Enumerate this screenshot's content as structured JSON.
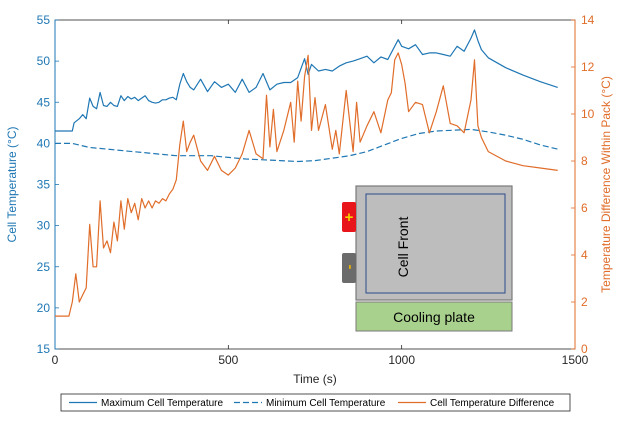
{
  "colors": {
    "left_axis": "#1f77b4",
    "right_axis": "#e06d2a",
    "max_series": "#1f77b4",
    "min_series": "#1f77b4",
    "diff_series": "#e06d2a",
    "cell_fill": "#bdbdbd",
    "cell_border": "#7a7a7a",
    "cell_inner_border": "#2b4a8a",
    "plus_terminal": "#e8161b",
    "plus_mark": "#f2d200",
    "minus_terminal": "#6b6b6b",
    "minus_mark": "#e8b400",
    "cooling_plate": "#a9d18e"
  },
  "inset": {
    "cell_label": "Cell Front",
    "plate_label": "Cooling plate",
    "plus_symbol": "+",
    "minus_symbol": "-"
  },
  "chart_data": {
    "type": "line",
    "title": "",
    "xlabel": "Time (s)",
    "ylabel_left": "Cell Temperature (°C)",
    "ylabel_right": "Temperature Difference Within Pack (°C)",
    "xlim": [
      0,
      1500
    ],
    "ylim_left": [
      15,
      55
    ],
    "ylim_right": [
      0,
      14
    ],
    "x_ticks": [
      0,
      500,
      1000,
      1500
    ],
    "y_ticks_left": [
      15,
      20,
      25,
      30,
      35,
      40,
      45,
      50,
      55
    ],
    "y_ticks_right": [
      0,
      2,
      4,
      6,
      8,
      10,
      12,
      14
    ],
    "grid": false,
    "legend_position": "bottom",
    "series": [
      {
        "name": "Maximum Cell Temperature",
        "axis": "left",
        "style": "solid",
        "x": [
          0,
          50,
          55,
          70,
          80,
          90,
          100,
          110,
          120,
          130,
          140,
          150,
          160,
          170,
          180,
          190,
          200,
          210,
          220,
          230,
          240,
          250,
          260,
          270,
          280,
          290,
          300,
          310,
          320,
          330,
          340,
          350,
          360,
          370,
          380,
          390,
          400,
          420,
          440,
          460,
          480,
          500,
          520,
          540,
          560,
          580,
          600,
          620,
          640,
          660,
          680,
          700,
          720,
          730,
          740,
          760,
          780,
          800,
          820,
          840,
          860,
          880,
          900,
          920,
          940,
          960,
          980,
          990,
          1000,
          1020,
          1040,
          1060,
          1080,
          1100,
          1120,
          1140,
          1160,
          1180,
          1200,
          1210,
          1220,
          1230,
          1250,
          1300,
          1350,
          1400,
          1450
        ],
        "y": [
          41.5,
          41.5,
          42.5,
          43,
          43.5,
          43,
          45.5,
          44.5,
          44.2,
          46.2,
          44.6,
          44.5,
          45,
          44.6,
          44.5,
          45.8,
          45.2,
          45.7,
          45.4,
          45.6,
          45.2,
          45.5,
          45.8,
          45.2,
          45,
          44.9,
          45,
          45.3,
          45.3,
          45.5,
          45.6,
          45.3,
          47.2,
          48.5,
          47.5,
          46.8,
          46.5,
          47.8,
          46.3,
          47.5,
          46.8,
          47.2,
          46.2,
          47.8,
          46.2,
          46.8,
          48.5,
          46.5,
          47.2,
          47.4,
          47.4,
          48,
          50.3,
          48.4,
          49.6,
          48.8,
          49,
          48.8,
          49.4,
          49.8,
          50,
          50.3,
          50.6,
          49.8,
          50.5,
          50.2,
          51.8,
          52.6,
          51.8,
          51.5,
          52,
          50.8,
          51,
          51,
          50.8,
          50.6,
          51.8,
          51.2,
          52.8,
          53.8,
          52.5,
          51.4,
          50.4,
          49.2,
          48.3,
          47.5,
          46.8
        ]
      },
      {
        "name": "Minimum Cell Temperature",
        "axis": "left",
        "style": "dashed",
        "x": [
          0,
          50,
          100,
          150,
          200,
          250,
          300,
          350,
          400,
          450,
          500,
          550,
          600,
          650,
          700,
          750,
          800,
          850,
          900,
          950,
          1000,
          1050,
          1100,
          1150,
          1200,
          1250,
          1300,
          1350,
          1400,
          1450
        ],
        "y": [
          40,
          40,
          39.5,
          39.3,
          39.1,
          38.9,
          38.7,
          38.5,
          38.5,
          38.5,
          38.3,
          38.1,
          38,
          37.9,
          37.8,
          37.9,
          38.2,
          38.5,
          39,
          39.8,
          40.6,
          41.2,
          41.5,
          41.6,
          41.7,
          41.4,
          41,
          40.5,
          39.8,
          39.3
        ]
      },
      {
        "name": "Cell Temperature Difference",
        "axis": "right",
        "style": "solid",
        "x": [
          0,
          40,
          50,
          60,
          70,
          80,
          90,
          100,
          110,
          120,
          130,
          140,
          150,
          160,
          170,
          180,
          190,
          200,
          210,
          220,
          230,
          240,
          250,
          260,
          270,
          280,
          290,
          300,
          310,
          320,
          330,
          340,
          350,
          360,
          370,
          380,
          390,
          400,
          420,
          440,
          460,
          480,
          500,
          520,
          540,
          560,
          580,
          600,
          610,
          620,
          630,
          640,
          660,
          680,
          690,
          700,
          710,
          720,
          730,
          740,
          750,
          760,
          780,
          800,
          810,
          820,
          840,
          860,
          870,
          880,
          900,
          920,
          940,
          960,
          970,
          980,
          990,
          1000,
          1010,
          1020,
          1040,
          1060,
          1080,
          1100,
          1120,
          1140,
          1160,
          1180,
          1200,
          1210,
          1220,
          1230,
          1250,
          1300,
          1350,
          1400,
          1450
        ],
        "y": [
          1.4,
          1.4,
          2.0,
          3.2,
          2.0,
          2.3,
          2.6,
          5.3,
          3.5,
          3.5,
          6.3,
          4.3,
          4.6,
          4.1,
          5.4,
          4.6,
          6.3,
          5.1,
          6.4,
          5.8,
          6.2,
          5.5,
          6.4,
          6.0,
          6.3,
          6.0,
          6.3,
          6.2,
          6.4,
          6.3,
          6.6,
          6.8,
          7.2,
          8.7,
          9.7,
          8.4,
          8.8,
          9.1,
          8.0,
          7.6,
          8.2,
          7.6,
          7.4,
          7.7,
          8.3,
          9.3,
          8.3,
          8.1,
          10.8,
          8.6,
          10.2,
          8.4,
          9.3,
          10.5,
          8.8,
          11.4,
          9.7,
          11.6,
          12.5,
          9.3,
          10.7,
          9.3,
          10.4,
          8.5,
          9.3,
          8.3,
          11.0,
          8.4,
          10.5,
          8.8,
          9.5,
          10.1,
          9.2,
          10.6,
          10.9,
          12.3,
          12.6,
          12.1,
          11.3,
          10.1,
          10.5,
          10.4,
          9.2,
          10.1,
          11.2,
          9.6,
          9.5,
          9.2,
          10.6,
          12.3,
          9.5,
          9.0,
          8.4,
          8.0,
          7.8,
          7.7,
          7.6
        ]
      }
    ]
  }
}
